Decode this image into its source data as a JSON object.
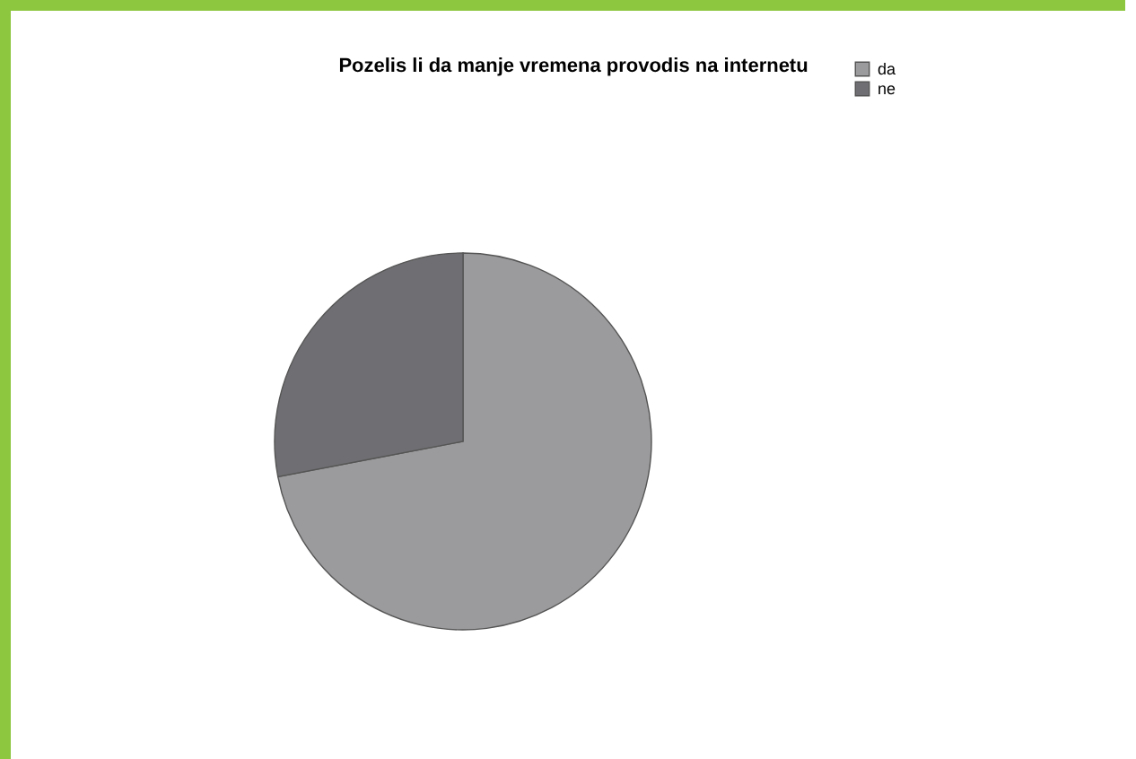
{
  "chart_data": {
    "type": "pie",
    "title": "Pozelis li da manje vremena provodis na internetu",
    "categories": [
      "da",
      "ne"
    ],
    "values": [
      72,
      28
    ],
    "colors": [
      "#9b9b9d",
      "#6f6f73"
    ],
    "legend": "top right"
  }
}
